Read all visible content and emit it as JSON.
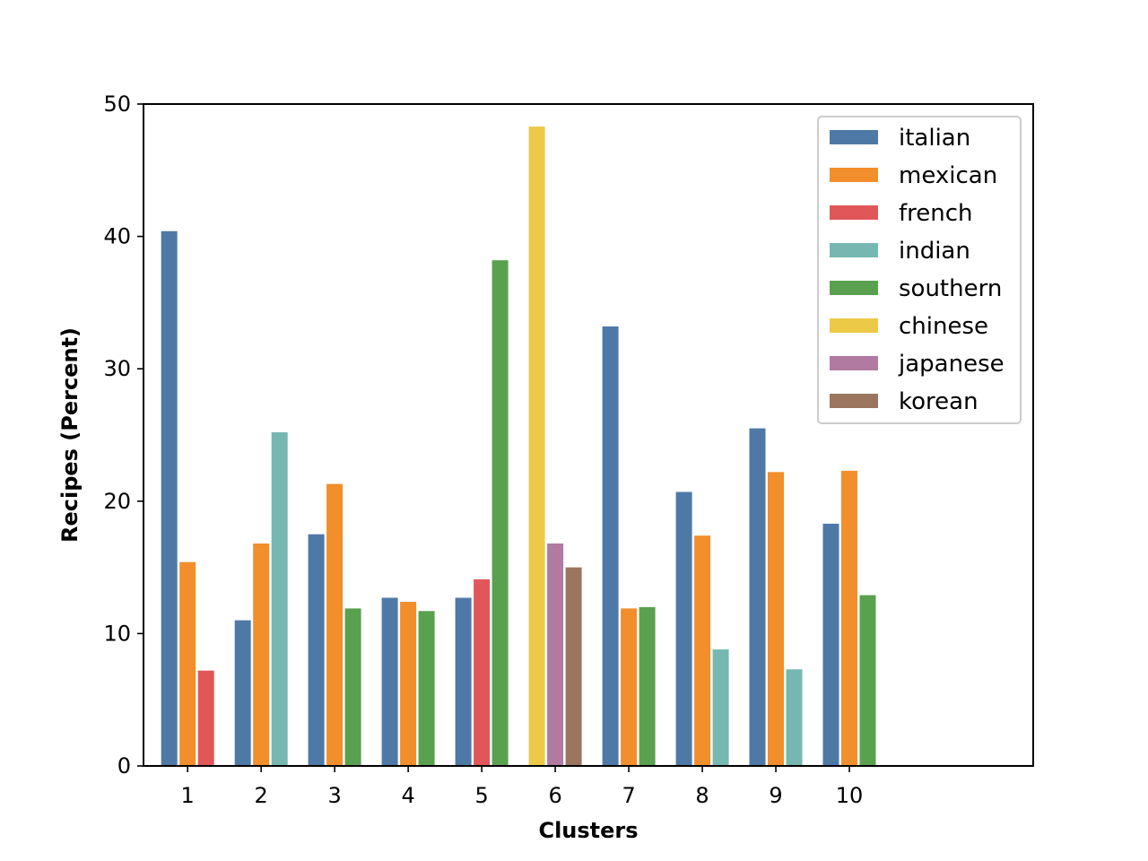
{
  "chart_data": {
    "type": "bar",
    "title": "",
    "xlabel": "Clusters",
    "ylabel": "Recipes (Percent)",
    "ylim": [
      0,
      50
    ],
    "yticks": [
      0,
      10,
      20,
      30,
      40,
      50
    ],
    "xlim": [
      0.4,
      12.5
    ],
    "grid": false,
    "legend_position": "top-right",
    "categories": [
      "1",
      "2",
      "3",
      "4",
      "5",
      "6",
      "7",
      "8",
      "9",
      "10"
    ],
    "series_colors": {
      "italian": "#4e79a7",
      "mexican": "#f28e2b",
      "french": "#e15759",
      "indian": "#76b7b2",
      "southern": "#59a14f",
      "chinese": "#edc948",
      "japanese": "#b07aa1",
      "korean": "#9c755f"
    },
    "legend": [
      "italian",
      "mexican",
      "french",
      "indian",
      "southern",
      "chinese",
      "japanese",
      "korean"
    ],
    "clusters": [
      {
        "label": "1",
        "bars": [
          {
            "series": "italian",
            "value": 40.4
          },
          {
            "series": "mexican",
            "value": 15.4
          },
          {
            "series": "french",
            "value": 7.2
          }
        ]
      },
      {
        "label": "2",
        "bars": [
          {
            "series": "italian",
            "value": 11.0
          },
          {
            "series": "mexican",
            "value": 16.8
          },
          {
            "series": "indian",
            "value": 25.2
          }
        ]
      },
      {
        "label": "3",
        "bars": [
          {
            "series": "italian",
            "value": 17.5
          },
          {
            "series": "mexican",
            "value": 21.3
          },
          {
            "series": "southern",
            "value": 11.9
          }
        ]
      },
      {
        "label": "4",
        "bars": [
          {
            "series": "italian",
            "value": 12.7
          },
          {
            "series": "mexican",
            "value": 12.4
          },
          {
            "series": "southern",
            "value": 11.7
          }
        ]
      },
      {
        "label": "5",
        "bars": [
          {
            "series": "italian",
            "value": 12.7
          },
          {
            "series": "french",
            "value": 14.1
          },
          {
            "series": "southern",
            "value": 38.2
          }
        ]
      },
      {
        "label": "6",
        "bars": [
          {
            "series": "chinese",
            "value": 48.3
          },
          {
            "series": "japanese",
            "value": 16.8
          },
          {
            "series": "korean",
            "value": 15.0
          }
        ]
      },
      {
        "label": "7",
        "bars": [
          {
            "series": "italian",
            "value": 33.2
          },
          {
            "series": "mexican",
            "value": 11.9
          },
          {
            "series": "southern",
            "value": 12.0
          }
        ]
      },
      {
        "label": "8",
        "bars": [
          {
            "series": "italian",
            "value": 20.7
          },
          {
            "series": "mexican",
            "value": 17.4
          },
          {
            "series": "indian",
            "value": 8.8
          }
        ]
      },
      {
        "label": "9",
        "bars": [
          {
            "series": "italian",
            "value": 25.5
          },
          {
            "series": "mexican",
            "value": 22.2
          },
          {
            "series": "indian",
            "value": 7.3
          }
        ]
      },
      {
        "label": "10",
        "bars": [
          {
            "series": "italian",
            "value": 18.3
          },
          {
            "series": "mexican",
            "value": 22.3
          },
          {
            "series": "southern",
            "value": 12.9
          }
        ]
      }
    ]
  }
}
